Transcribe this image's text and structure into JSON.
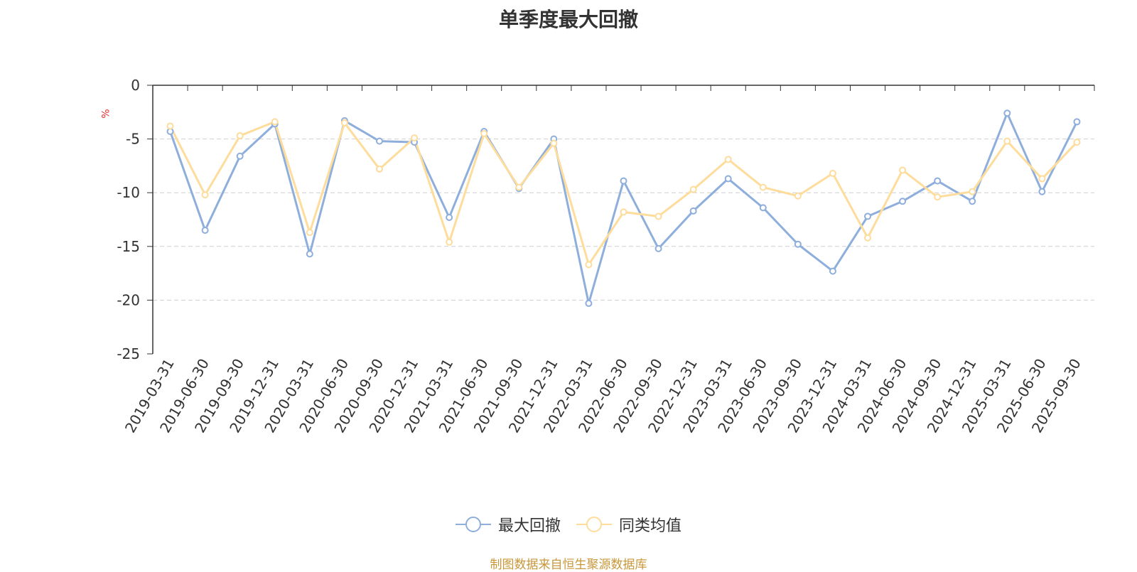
{
  "chart_data": {
    "type": "line",
    "title": "单季度最大回撤",
    "ylabel": "%",
    "ylim": [
      -25,
      0
    ],
    "yticks": [
      0,
      -5,
      -10,
      -15,
      -20,
      -25
    ],
    "grid": true,
    "legend_position": "bottom",
    "categories": [
      "2019-03-31",
      "2019-06-30",
      "2019-09-30",
      "2019-12-31",
      "2020-03-31",
      "2020-06-30",
      "2020-09-30",
      "2020-12-31",
      "2021-03-31",
      "2021-06-30",
      "2021-09-30",
      "2021-12-31",
      "2022-03-31",
      "2022-06-30",
      "2022-09-30",
      "2022-12-31",
      "2023-03-31",
      "2023-06-30",
      "2023-09-30",
      "2023-12-31",
      "2024-03-31",
      "2024-06-30",
      "2024-09-30",
      "2024-12-31",
      "2025-03-31",
      "2025-06-30",
      "2025-09-30"
    ],
    "series": [
      {
        "name": "最大回撤",
        "color": "#8eaedc",
        "values": [
          -4.3,
          -13.5,
          -6.6,
          -3.6,
          -15.7,
          -3.3,
          -5.2,
          -5.3,
          -12.3,
          -4.3,
          -9.6,
          -5.0,
          -20.3,
          -8.9,
          -15.2,
          -11.7,
          -8.7,
          -11.4,
          -14.8,
          -17.3,
          -12.2,
          -10.8,
          -8.9,
          -10.8,
          -2.6,
          -9.9,
          -3.4
        ]
      },
      {
        "name": "同类均值",
        "color": "#fddc9c",
        "values": [
          -3.8,
          -10.2,
          -4.7,
          -3.4,
          -13.7,
          -3.5,
          -7.8,
          -4.9,
          -14.6,
          -4.5,
          -9.5,
          -5.4,
          -16.7,
          -11.8,
          -12.2,
          -9.7,
          -6.9,
          -9.5,
          -10.3,
          -8.2,
          -14.2,
          -7.9,
          -10.4,
          -9.9,
          -5.2,
          -8.7,
          -5.3
        ]
      }
    ]
  },
  "footer": {
    "text": "制图数据来自恒生聚源数据库",
    "color": "#c8973a"
  },
  "unit_color": "#e03030"
}
